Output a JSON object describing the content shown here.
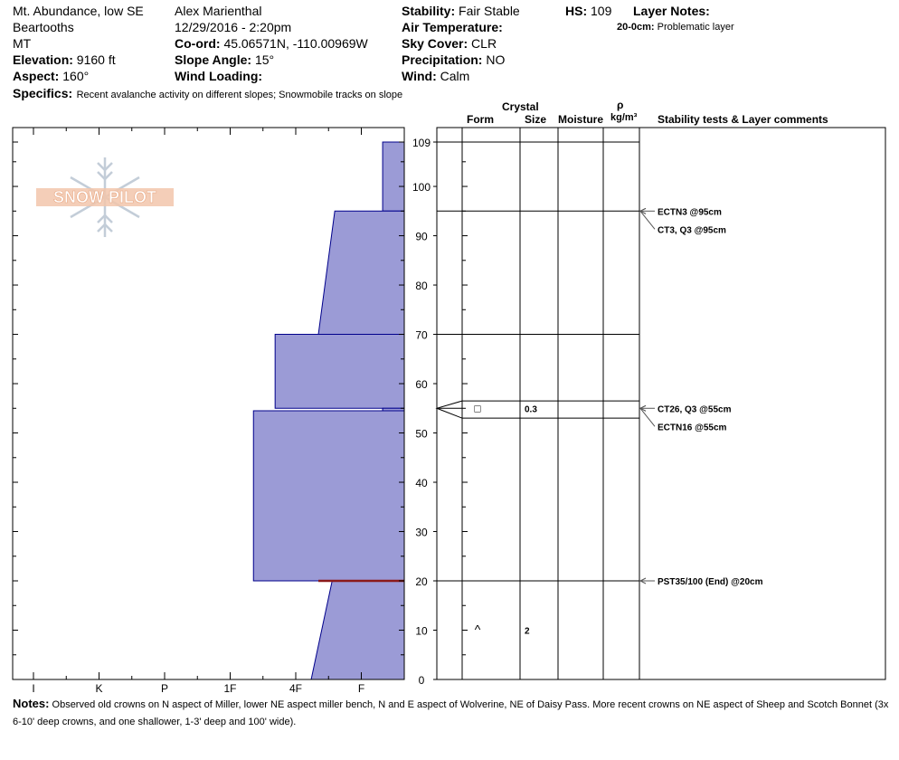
{
  "header": {
    "location": "Mt. Abundance, low SE",
    "range": "Beartooths",
    "state": "MT",
    "elevation_label": "Elevation:",
    "elevation_value": "9160 ft",
    "aspect_label": "Aspect:",
    "aspect_value": "160°",
    "observer": "Alex Marienthal",
    "datetime": "12/29/2016 - 2:20pm",
    "coord_label": "Co-ord:",
    "coord_value": "45.06571N, -110.00969W",
    "slope_label": "Slope Angle:",
    "slope_value": "15°",
    "wind_loading_label": "Wind Loading:",
    "wind_loading_value": "",
    "stability_label": "Stability:",
    "stability_value": "Fair Stable",
    "air_temp_label": "Air Temperature:",
    "air_temp_value": "",
    "sky_label": "Sky Cover:",
    "sky_value": "CLR",
    "precip_label": "Precipitation:",
    "precip_value": "NO",
    "wind_label": "Wind:",
    "wind_value": "Calm",
    "hs_label": "HS:",
    "hs_value": "109",
    "layer_notes_label": "Layer Notes:",
    "layer_note_range": "20-0cm:",
    "layer_note_text": "Problematic layer",
    "specifics_label": "Specifics:",
    "specifics_text": "Recent avalanche activity on different slopes;  Snowmobile tracks on slope"
  },
  "logo": {
    "text": "SNOW PILOT"
  },
  "columns": {
    "crystal": "Crystal",
    "form": "Form",
    "size": "Size",
    "moisture": "Moisture",
    "rho": "ρ",
    "density_unit": "kg/m³",
    "comments": "Stability tests & Layer comments"
  },
  "notes": {
    "label": "Notes:",
    "text": "Observed old crowns on N aspect of Miller, lower NE aspect miller bench, N and E aspect of Wolverine, NE of Daisy Pass. More recent crowns on NE aspect of Sheep and Scotch Bonnet (3x 6-10' deep crowns, and one shallower, 1-3' deep and 100' wide)."
  },
  "chart_data": {
    "type": "snow-profile",
    "hardness_categories": [
      "I",
      "K",
      "P",
      "1F",
      "4F",
      "F"
    ],
    "depth_axis": {
      "range": [
        0,
        109
      ],
      "ticks": [
        0,
        10,
        20,
        30,
        40,
        50,
        60,
        70,
        80,
        90,
        100,
        109
      ],
      "unit": "cm"
    },
    "layers": [
      {
        "top": 109,
        "bottom": 95,
        "hardness_top": 0.33,
        "hardness_bottom": 0.33
      },
      {
        "top": 95,
        "bottom": 70,
        "hardness_top": 1.06,
        "hardness_bottom": 1.31
      },
      {
        "top": 70,
        "bottom": 55,
        "hardness_top": 1.97,
        "hardness_bottom": 1.97
      },
      {
        "top": 55,
        "bottom": 54.5,
        "hardness_top": 0.33,
        "hardness_bottom": 0.33
      },
      {
        "top": 54.5,
        "bottom": 20,
        "hardness_top": 2.3,
        "hardness_bottom": 2.3
      },
      {
        "top": 20,
        "bottom": 0,
        "hardness_top": 1.1,
        "hardness_bottom": 1.42
      }
    ],
    "problem_layer_depth": 20,
    "layer_boundaries": [
      109,
      95,
      70,
      56.5,
      53,
      20
    ],
    "weak_layer_marker_depth": 55,
    "crystals": [
      {
        "depth": 55,
        "form": "□",
        "size": "0.3"
      },
      {
        "depth": 10,
        "form": "^",
        "size": "2"
      }
    ],
    "tests": [
      {
        "depth": 95,
        "label": "ECTN3 @95cm"
      },
      {
        "depth": 95,
        "label": "CT3, Q3 @95cm"
      },
      {
        "depth": 55,
        "label": "CT26, Q3 @55cm"
      },
      {
        "depth": 55,
        "label": "ECTN16 @55cm"
      },
      {
        "depth": 20,
        "label": "PST35/100 (End) @20cm"
      }
    ]
  }
}
